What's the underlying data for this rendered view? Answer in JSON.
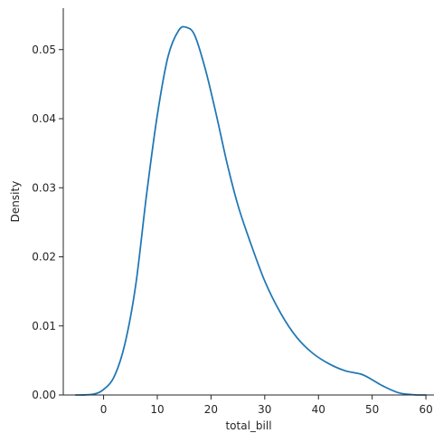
{
  "chart_data": {
    "type": "line",
    "title": "",
    "xlabel": "total_bill",
    "ylabel": "Density",
    "xlim": [
      -7.5,
      61.5
    ],
    "ylim": [
      0,
      0.056
    ],
    "xticks": [
      0,
      10,
      20,
      30,
      40,
      50,
      60
    ],
    "xtick_labels": [
      "0",
      "10",
      "20",
      "30",
      "40",
      "50",
      "60"
    ],
    "yticks": [
      0,
      0.01,
      0.02,
      0.03,
      0.04,
      0.05
    ],
    "ytick_labels": [
      "0.00",
      "0.01",
      "0.02",
      "0.03",
      "0.04",
      "0.05"
    ],
    "grid": false,
    "colors": {
      "line": "#1f77b4"
    },
    "series": [
      {
        "x": [
          -5.2,
          -2,
          0,
          2,
          4,
          6,
          8,
          10,
          12,
          14,
          15.5,
          17,
          19,
          21,
          23,
          25,
          27,
          30,
          33,
          36,
          39,
          42,
          45,
          48,
          50,
          52,
          55,
          58,
          60
        ],
        "y": [
          0.0,
          0.0001,
          0.0008,
          0.0027,
          0.0075,
          0.016,
          0.029,
          0.0405,
          0.049,
          0.0528,
          0.0532,
          0.052,
          0.047,
          0.0405,
          0.0335,
          0.0275,
          0.0228,
          0.0165,
          0.0118,
          0.0083,
          0.006,
          0.0045,
          0.0035,
          0.003,
          0.0022,
          0.0013,
          0.0003,
          2e-05,
          0.0
        ]
      }
    ]
  }
}
